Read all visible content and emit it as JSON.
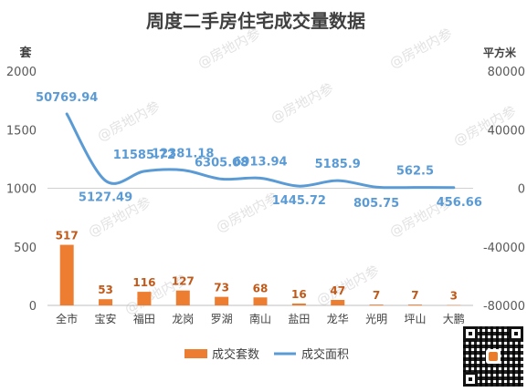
{
  "chart_data": {
    "type": "bar",
    "title": "周度二手房住宅成交量数据",
    "left_axis": {
      "unit": "套",
      "ticks": [
        0,
        500,
        1000,
        1500,
        2000
      ],
      "range": [
        0,
        2000
      ]
    },
    "right_axis": {
      "unit": "平方米",
      "ticks": [
        -80000,
        -40000,
        0,
        40000,
        80000
      ],
      "range": [
        -80000,
        80000
      ]
    },
    "categories": [
      "全市",
      "宝安",
      "福田",
      "龙岗",
      "罗湖",
      "南山",
      "盐田",
      "龙华",
      "光明",
      "坪山",
      "大鹏"
    ],
    "series": [
      {
        "name": "成交套数",
        "type": "bar",
        "axis": "left",
        "color": "#ed7d31",
        "values": [
          517,
          53,
          116,
          127,
          73,
          68,
          16,
          47,
          7,
          7,
          3
        ],
        "labels": [
          "517",
          "53",
          "116",
          "127",
          "73",
          "68",
          "16",
          "47",
          "7",
          "7",
          "3"
        ]
      },
      {
        "name": "成交面积",
        "type": "line",
        "axis": "right",
        "color": "#5b9bd5",
        "smooth": true,
        "values": [
          50769.94,
          5127.49,
          11585.72,
          12381.18,
          6305.08,
          6913.94,
          1445.72,
          5185.9,
          805.75,
          562.5,
          456.66
        ],
        "labels": [
          "50769.94",
          "5127.49",
          "11585.72",
          "12381.18",
          "6305.08",
          "6913.94",
          "1445.72",
          "5185.9",
          "805.75",
          "562.5",
          "456.66"
        ]
      }
    ],
    "legend": "bottom",
    "grid": false
  },
  "watermark": "@房地内参"
}
